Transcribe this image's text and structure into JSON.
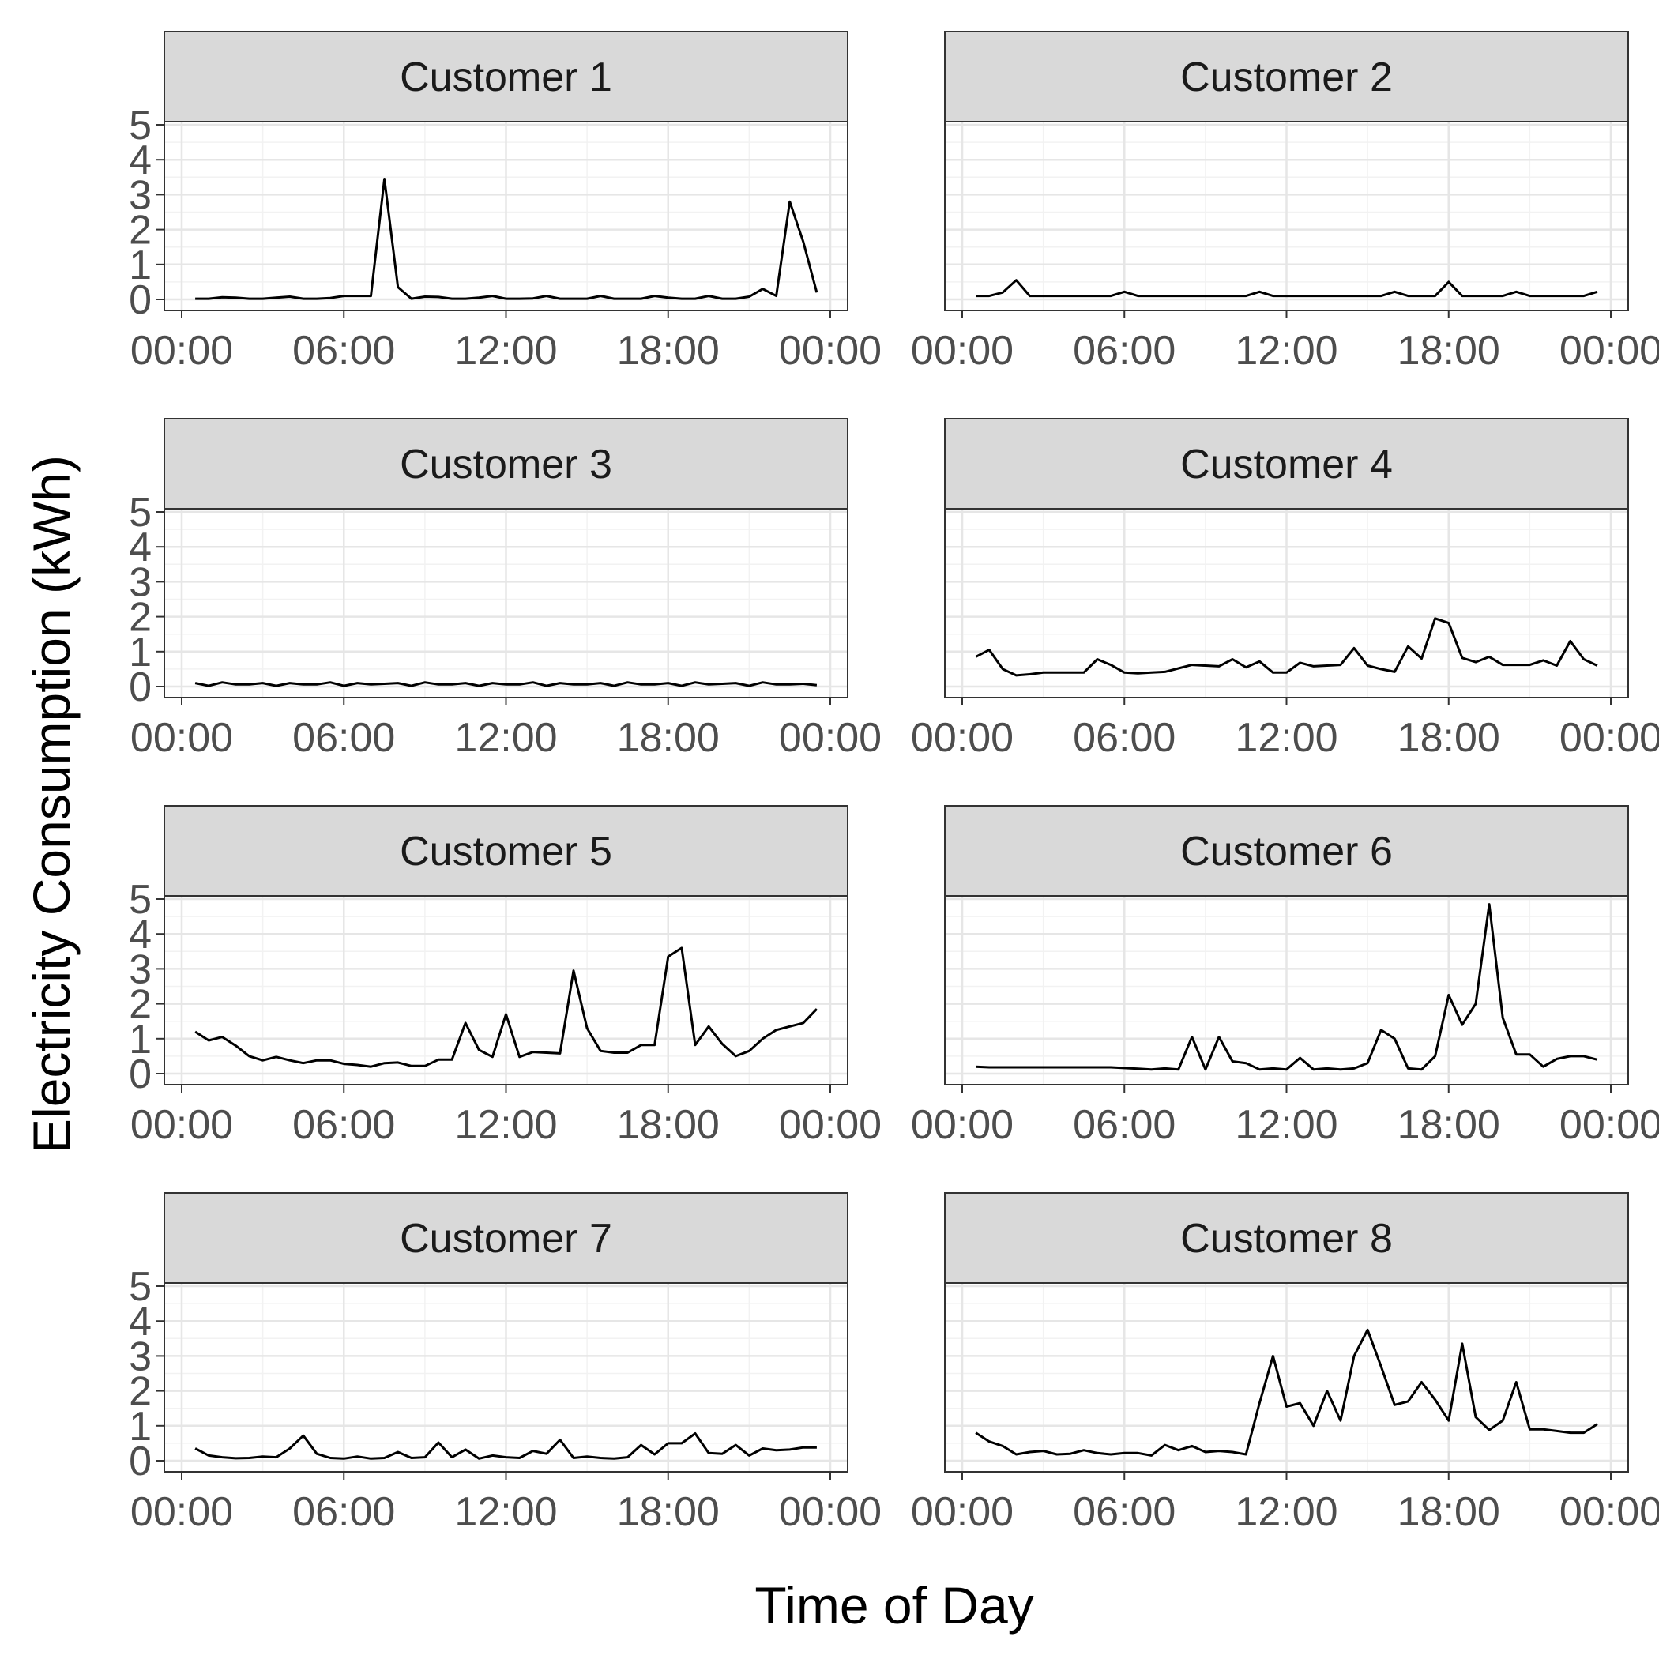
{
  "chart_data": {
    "type": "line",
    "layout": "faceted-grid",
    "xlabel": "Time of Day",
    "ylabel": "Electricity Consumption (kWh)",
    "xlim": [
      0,
      24
    ],
    "ylim": [
      0,
      5
    ],
    "x_ticks": [
      0,
      6,
      12,
      18,
      24
    ],
    "x_tick_labels": [
      "00:00",
      "06:00",
      "12:00",
      "18:00",
      "00:00"
    ],
    "y_ticks": [
      0,
      1,
      2,
      3,
      4,
      5
    ],
    "y_tick_labels": [
      "0",
      "1",
      "2",
      "3",
      "4",
      "5"
    ],
    "grid": true,
    "line_color": "#000000",
    "strip_color": "#d9d9d9",
    "x": [
      0.5,
      1,
      1.5,
      2,
      2.5,
      3,
      3.5,
      4,
      4.5,
      5,
      5.5,
      6,
      6.5,
      7,
      7.5,
      8,
      8.5,
      9,
      9.5,
      10,
      10.5,
      11,
      11.5,
      12,
      12.5,
      13,
      13.5,
      14,
      14.5,
      15,
      15.5,
      16,
      16.5,
      17,
      17.5,
      18,
      18.5,
      19,
      19.5,
      20,
      20.5,
      21,
      21.5,
      22,
      22.5,
      23,
      23.5
    ],
    "panels": [
      {
        "title": "Customer 1",
        "values": [
          0.02,
          0.02,
          0.06,
          0.05,
          0.02,
          0.02,
          0.05,
          0.08,
          0.02,
          0.02,
          0.04,
          0.1,
          0.1,
          0.1,
          3.45,
          0.35,
          0.02,
          0.08,
          0.07,
          0.02,
          0.02,
          0.05,
          0.1,
          0.02,
          0.02,
          0.03,
          0.1,
          0.02,
          0.02,
          0.02,
          0.1,
          0.02,
          0.02,
          0.02,
          0.1,
          0.05,
          0.02,
          0.02,
          0.1,
          0.02,
          0.02,
          0.08,
          0.3,
          0.1,
          2.8,
          1.65,
          0.2
        ]
      },
      {
        "title": "Customer 2",
        "values": [
          0.1,
          0.1,
          0.2,
          0.55,
          0.1,
          0.1,
          0.1,
          0.1,
          0.1,
          0.1,
          0.1,
          0.22,
          0.1,
          0.1,
          0.1,
          0.1,
          0.1,
          0.1,
          0.1,
          0.1,
          0.1,
          0.22,
          0.1,
          0.1,
          0.1,
          0.1,
          0.1,
          0.1,
          0.1,
          0.1,
          0.1,
          0.22,
          0.1,
          0.1,
          0.1,
          0.5,
          0.1,
          0.1,
          0.1,
          0.1,
          0.22,
          0.1,
          0.1,
          0.1,
          0.1,
          0.1,
          0.22
        ]
      },
      {
        "title": "Customer 3",
        "values": [
          0.1,
          0.02,
          0.12,
          0.06,
          0.06,
          0.1,
          0.02,
          0.1,
          0.06,
          0.06,
          0.12,
          0.02,
          0.1,
          0.06,
          0.08,
          0.1,
          0.02,
          0.12,
          0.06,
          0.06,
          0.1,
          0.02,
          0.1,
          0.06,
          0.06,
          0.12,
          0.02,
          0.1,
          0.06,
          0.06,
          0.1,
          0.02,
          0.12,
          0.06,
          0.06,
          0.1,
          0.02,
          0.12,
          0.06,
          0.08,
          0.1,
          0.02,
          0.12,
          0.06,
          0.06,
          0.08,
          0.04
        ]
      },
      {
        "title": "Customer 4",
        "values": [
          0.85,
          1.05,
          0.5,
          0.32,
          0.35,
          0.4,
          0.4,
          0.4,
          0.4,
          0.78,
          0.62,
          0.4,
          0.38,
          0.4,
          0.42,
          0.52,
          0.62,
          0.6,
          0.58,
          0.78,
          0.55,
          0.72,
          0.4,
          0.4,
          0.68,
          0.58,
          0.6,
          0.62,
          1.1,
          0.6,
          0.5,
          0.42,
          1.15,
          0.8,
          1.95,
          1.82,
          0.82,
          0.7,
          0.85,
          0.62,
          0.62,
          0.62,
          0.75,
          0.6,
          1.3,
          0.78,
          0.6
        ]
      },
      {
        "title": "Customer 5",
        "values": [
          1.2,
          0.95,
          1.05,
          0.8,
          0.5,
          0.38,
          0.48,
          0.38,
          0.3,
          0.38,
          0.38,
          0.28,
          0.25,
          0.2,
          0.3,
          0.32,
          0.22,
          0.22,
          0.4,
          0.4,
          1.45,
          0.68,
          0.48,
          1.7,
          0.48,
          0.62,
          0.6,
          0.58,
          2.95,
          1.3,
          0.65,
          0.6,
          0.6,
          0.82,
          0.82,
          3.35,
          3.6,
          0.82,
          1.35,
          0.85,
          0.5,
          0.65,
          1.0,
          1.25,
          1.35,
          1.45,
          1.85
        ]
      },
      {
        "title": "Customer 6",
        "values": [
          0.2,
          0.18,
          0.18,
          0.18,
          0.18,
          0.18,
          0.18,
          0.18,
          0.18,
          0.18,
          0.18,
          0.16,
          0.14,
          0.12,
          0.15,
          0.12,
          1.05,
          0.12,
          1.05,
          0.35,
          0.3,
          0.12,
          0.15,
          0.12,
          0.45,
          0.12,
          0.15,
          0.12,
          0.15,
          0.3,
          1.25,
          1.0,
          0.15,
          0.12,
          0.5,
          2.25,
          1.4,
          2.0,
          4.85,
          1.6,
          0.55,
          0.55,
          0.2,
          0.42,
          0.5,
          0.5,
          0.4
        ]
      },
      {
        "title": "Customer 7",
        "values": [
          0.35,
          0.15,
          0.1,
          0.07,
          0.08,
          0.12,
          0.1,
          0.35,
          0.72,
          0.2,
          0.08,
          0.06,
          0.12,
          0.06,
          0.08,
          0.25,
          0.08,
          0.1,
          0.52,
          0.1,
          0.32,
          0.06,
          0.15,
          0.1,
          0.08,
          0.28,
          0.2,
          0.6,
          0.08,
          0.12,
          0.08,
          0.06,
          0.1,
          0.45,
          0.18,
          0.5,
          0.5,
          0.78,
          0.22,
          0.2,
          0.45,
          0.15,
          0.35,
          0.3,
          0.32,
          0.38,
          0.38
        ]
      },
      {
        "title": "Customer 8",
        "values": [
          0.8,
          0.55,
          0.42,
          0.18,
          0.25,
          0.28,
          0.18,
          0.2,
          0.3,
          0.22,
          0.18,
          0.22,
          0.22,
          0.15,
          0.45,
          0.3,
          0.42,
          0.25,
          0.28,
          0.25,
          0.18,
          1.65,
          3.0,
          1.55,
          1.65,
          1.0,
          2.0,
          1.15,
          3.0,
          3.75,
          2.7,
          1.6,
          1.7,
          2.25,
          1.75,
          1.15,
          3.35,
          1.25,
          0.88,
          1.15,
          2.25,
          0.9,
          0.9,
          0.85,
          0.8,
          0.8,
          1.05
        ]
      }
    ]
  }
}
